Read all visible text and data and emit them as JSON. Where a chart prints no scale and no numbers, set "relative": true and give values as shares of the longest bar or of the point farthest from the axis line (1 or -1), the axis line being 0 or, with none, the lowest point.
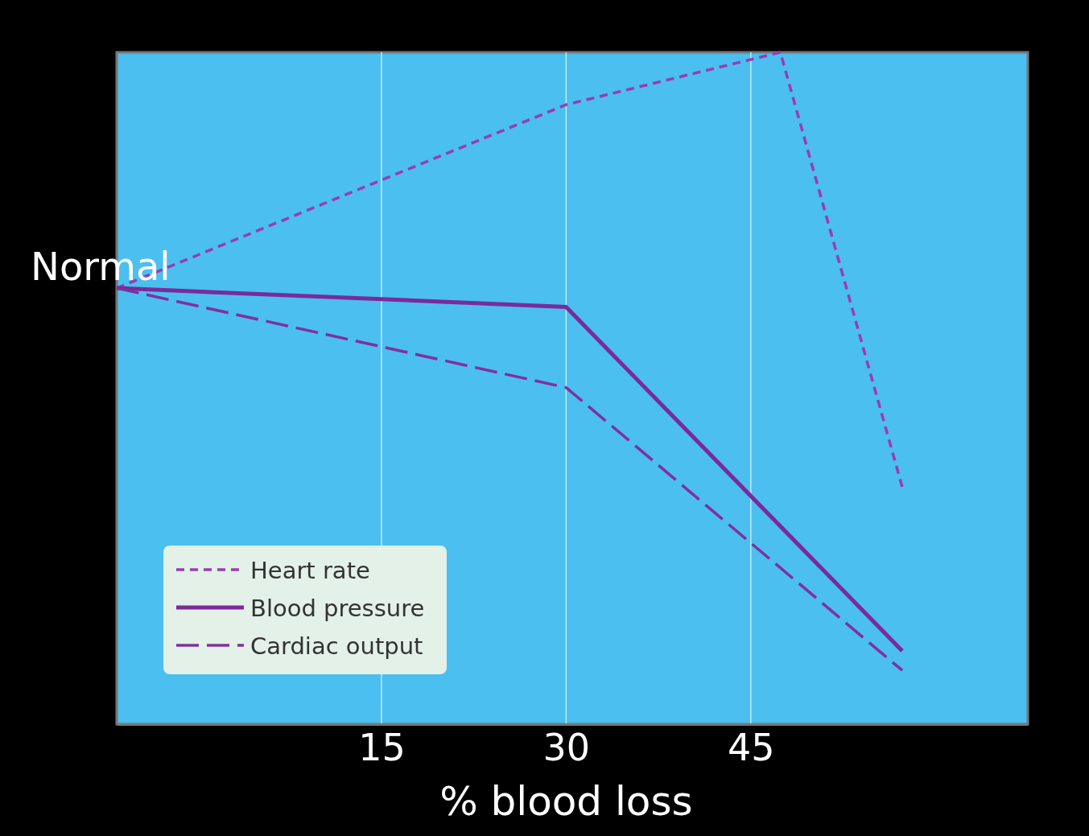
{
  "chart_data": {
    "type": "line",
    "xlabel": "% blood loss",
    "relative": true,
    "xlim": [
      -6.5,
      67.5
    ],
    "xticks": [
      15,
      30,
      45
    ],
    "grid": "x",
    "legend": "bottom left",
    "annotations": [
      "Normal"
    ],
    "series": [
      {
        "name": "Heart rate",
        "color": "#9a3bb5",
        "line_style": "dotted",
        "x": [
          -6.5,
          30,
          47.4,
          57.3
        ],
        "values": [
          0.649,
          0.922,
          1,
          0.353
        ]
      },
      {
        "name": "Blood pressure",
        "color": "#7a2a9c",
        "line_style": "solid",
        "x": [
          -6.5,
          30,
          57.3
        ],
        "values": [
          0.649,
          0.621,
          0.109
        ]
      },
      {
        "name": "Cardiac output",
        "color": "#80309e",
        "line_style": "dashed",
        "x": [
          -6.5,
          30,
          57.3
        ],
        "values": [
          0.649,
          0.501,
          0.08
        ]
      }
    ]
  }
}
